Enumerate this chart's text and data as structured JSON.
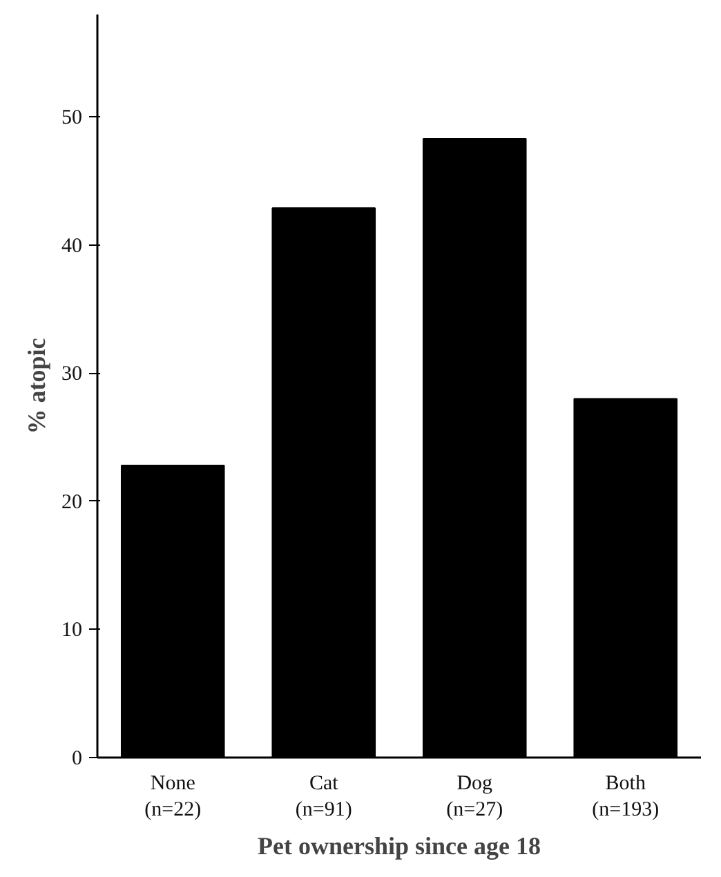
{
  "chart_data": {
    "type": "bar",
    "xlabel": "Pet ownership since age 18",
    "ylabel": "% atopic",
    "categories": [
      "None\n(n=22)",
      "Cat\n(n=91)",
      "Dog\n(n=27)",
      "Both\n(n=193)"
    ],
    "values": [
      22.8,
      42.9,
      48.3,
      28.0
    ],
    "color": "#000000",
    "ylim": [
      0,
      58
    ],
    "yticks": [
      0,
      10,
      20,
      30,
      40,
      50
    ],
    "grid": false
  }
}
